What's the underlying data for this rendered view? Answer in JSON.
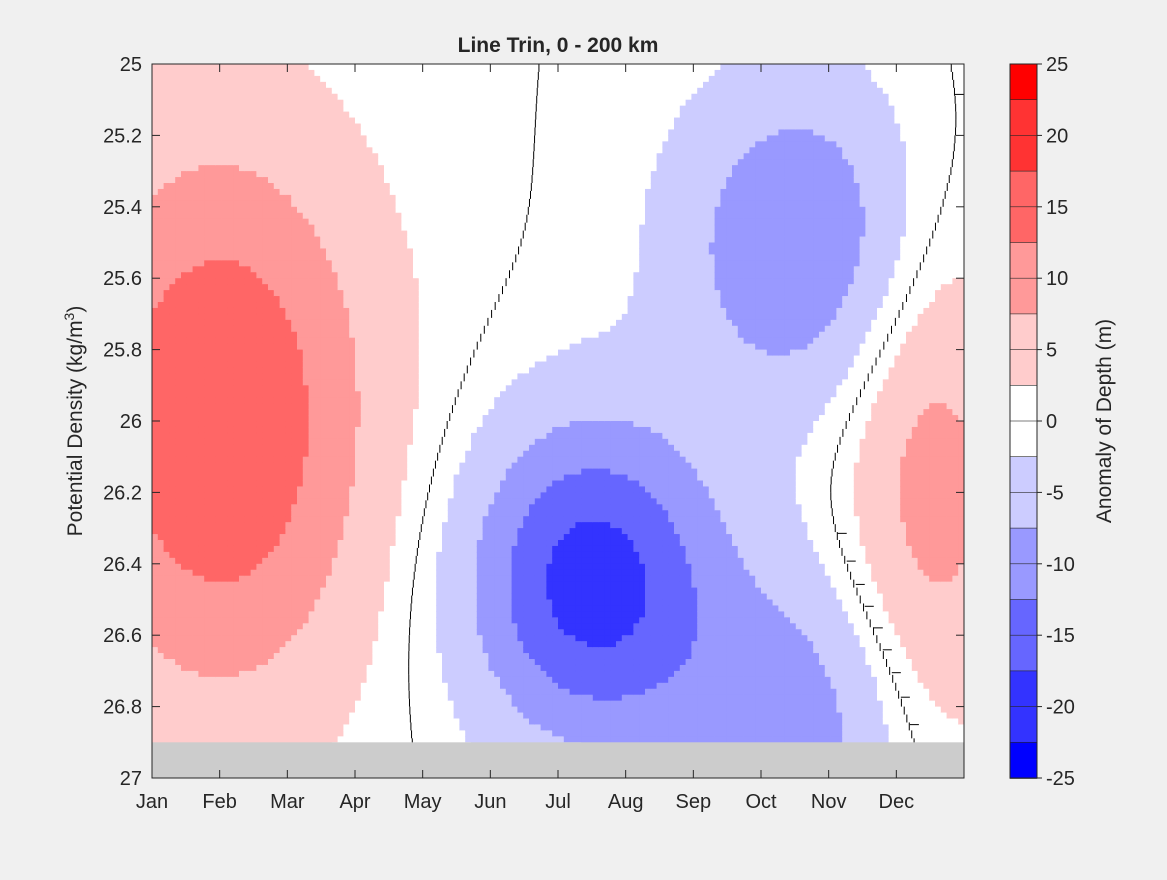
{
  "chart_data": {
    "type": "heatmap",
    "title": "Line Trin, 0 - 200 km",
    "xlabel": "",
    "ylabel_main": "Potential Density (kg/m",
    "ylabel_sup": "3",
    "ylabel_close": ")",
    "colorbar_label": "Anomaly of Depth (m)",
    "x_categories": [
      "Jan",
      "Feb",
      "Mar",
      "Apr",
      "May",
      "Jun",
      "Jul",
      "Aug",
      "Sep",
      "Oct",
      "Nov",
      "Dec"
    ],
    "ylim": [
      25,
      27
    ],
    "y_reversed": true,
    "y_ticks": [
      "25",
      "25.2",
      "25.4",
      "25.6",
      "25.8",
      "26",
      "26.2",
      "26.4",
      "26.6",
      "26.8",
      "27"
    ],
    "clim": [
      -25,
      25
    ],
    "contour_interval": 5,
    "colorbar_ticks": [
      "25",
      "20",
      "15",
      "10",
      "5",
      "0",
      "-5",
      "-10",
      "-15",
      "-20",
      "-25"
    ],
    "colormap": {
      "negative_end": "#0000ff",
      "zero": "#ffffff",
      "positive_end": "#ff0000"
    },
    "missing_data_color": "#cccccc",
    "missing_data_below_density": 26.9,
    "zero_contour_color": "#000000",
    "features": [
      {
        "sign": "positive",
        "month": 2.0,
        "density": 26.0,
        "value": 17.5
      },
      {
        "sign": "negative",
        "month": 7.5,
        "density": 26.45,
        "value": -20
      },
      {
        "sign": "negative",
        "month": 10.6,
        "density": 25.5,
        "value": -12.5
      },
      {
        "sign": "negative",
        "month": 10.6,
        "density": 26.85,
        "value": -10
      },
      {
        "sign": "positive",
        "month": 12.5,
        "density": 26.2,
        "value": 10
      }
    ]
  }
}
